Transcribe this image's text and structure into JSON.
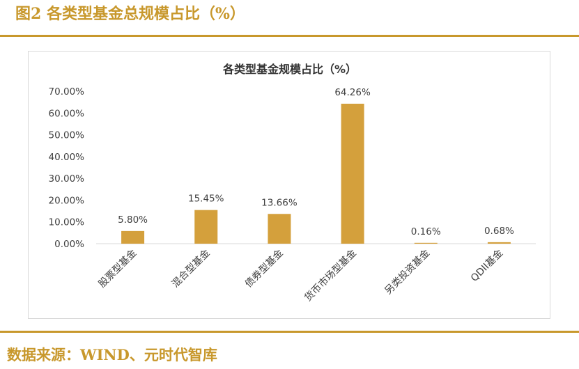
{
  "figure": {
    "title": "图2 各类型基金总规模占比（%）",
    "source": "数据来源：WIND、元时代智库"
  },
  "colors": {
    "accent": "#c8982c",
    "bar": "#d4a03c"
  },
  "chart_data": {
    "type": "bar",
    "title": "各类型基金规模占比（%）",
    "xlabel": "",
    "ylabel": "",
    "categories": [
      "股票型基金",
      "混合型基金",
      "债券型基金",
      "货币市场型基金",
      "另类投资基金",
      "QDII基金"
    ],
    "values": [
      5.8,
      15.45,
      13.66,
      64.26,
      0.16,
      0.68
    ],
    "data_labels": [
      "5.80%",
      "15.45%",
      "13.66%",
      "64.26%",
      "0.16%",
      "0.68%"
    ],
    "ylim": [
      0,
      70
    ],
    "yticks": [
      0,
      10,
      20,
      30,
      40,
      50,
      60,
      70
    ],
    "ytick_labels": [
      "0.00%",
      "10.00%",
      "20.00%",
      "30.00%",
      "40.00%",
      "50.00%",
      "60.00%",
      "70.00%"
    ],
    "grid": false,
    "legend": "none"
  }
}
